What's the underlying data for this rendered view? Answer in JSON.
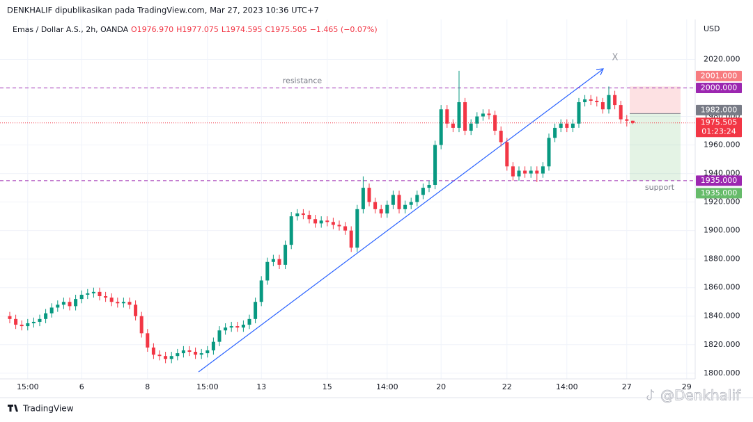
{
  "header": "DENKHALIF dipublikasikan pada TradingView.com, Mar 27, 2023 10:36 UTC+7",
  "footer": {
    "brand": "TradingView",
    "watermark": "@Denkhalif"
  },
  "chart_data": {
    "type": "candlestick",
    "legend": {
      "symbol": "Emas / Dollar A.S., 2h, OANDA",
      "open": "O1976.970",
      "high": "H1977.075",
      "low": "L1974.595",
      "close": "C1975.505",
      "change": "−1.465 (−0.07%)"
    },
    "currency": "USD",
    "trend_label": "X",
    "up_color": "#089981",
    "down_color": "#f23645",
    "categories": [
      null,
      null,
      null,
      "15:00",
      null,
      null,
      null,
      null,
      null,
      null,
      null,
      null,
      "6",
      null,
      null,
      null,
      null,
      null,
      null,
      null,
      null,
      null,
      null,
      "8",
      null,
      null,
      null,
      null,
      null,
      null,
      null,
      null,
      null,
      "15:00",
      null,
      null,
      null,
      null,
      null,
      null,
      null,
      null,
      "13",
      null,
      null,
      null,
      null,
      null,
      null,
      null,
      null,
      null,
      null,
      "15",
      null,
      null,
      null,
      null,
      null,
      null,
      null,
      null,
      null,
      "14:00",
      null,
      null,
      null,
      null,
      null,
      null,
      null,
      null,
      "20",
      null,
      null,
      null,
      null,
      null,
      null,
      null,
      null,
      null,
      null,
      "22",
      null,
      null,
      null,
      null,
      null,
      null,
      null,
      null,
      null,
      "14:00",
      null,
      null,
      null,
      null,
      null,
      null,
      null,
      null,
      null,
      "27",
      null,
      null,
      null,
      null,
      null,
      null,
      null,
      null,
      null,
      "29",
      null
    ],
    "open": [
      1840,
      1838,
      1834,
      1833,
      1835,
      1836,
      1838,
      1842,
      1846,
      1848,
      1850,
      1847,
      1852,
      1855,
      1856,
      1857,
      1854,
      1853,
      1850,
      1849,
      1850,
      1848,
      1840,
      1828,
      1818,
      1813,
      1812,
      1810,
      1812,
      1814,
      1816,
      1815,
      1813,
      1814,
      1816,
      1822,
      1830,
      1832,
      1833,
      1832,
      1834,
      1838,
      1850,
      1865,
      1878,
      1880,
      1876,
      1890,
      1910,
      1912,
      1911,
      1908,
      1905,
      1907,
      1906,
      1904,
      1903,
      1900,
      1888,
      1915,
      1930,
      1920,
      1915,
      1912,
      1918,
      1925,
      1915,
      1918,
      1920,
      1925,
      1930,
      1932,
      1960,
      1985,
      1975,
      1972,
      1990,
      1970,
      1975,
      1980,
      1982,
      1981,
      1970,
      1962,
      1945,
      1938,
      1942,
      1940,
      1942,
      1940,
      1945,
      1965,
      1972,
      1975,
      1972,
      1975,
      1990,
      1992,
      1991,
      1990,
      1985,
      1995,
      1988,
      1978,
      1976.97,
      null,
      null,
      null,
      null,
      null,
      null,
      null,
      null,
      null,
      null
    ],
    "high": [
      1843,
      1841,
      1837,
      1838,
      1839,
      1841,
      1845,
      1849,
      1851,
      1853,
      1853,
      1855,
      1858,
      1859,
      1860,
      1860,
      1857,
      1856,
      1853,
      1853,
      1853,
      1851,
      1843,
      1831,
      1821,
      1816,
      1815,
      1815,
      1817,
      1819,
      1819,
      1818,
      1817,
      1819,
      1825,
      1833,
      1835,
      1836,
      1836,
      1837,
      1841,
      1853,
      1868,
      1881,
      1883,
      1883,
      1893,
      1913,
      1915,
      1915,
      1914,
      1911,
      1910,
      1910,
      1909,
      1907,
      1906,
      1903,
      1918,
      1938,
      1933,
      1923,
      1918,
      1921,
      1928,
      1928,
      1921,
      1923,
      1928,
      1933,
      1935,
      1963,
      1988,
      1988,
      1978,
      2012,
      1993,
      1978,
      1983,
      1985,
      1985,
      1984,
      1973,
      1965,
      1948,
      1945,
      1945,
      1945,
      1945,
      1948,
      1968,
      1975,
      1978,
      1978,
      1978,
      1993,
      1995,
      1995,
      1994,
      1993,
      2001,
      1998,
      1991,
      1981,
      1977.075,
      null,
      null,
      null,
      null,
      null,
      null,
      null,
      null,
      null,
      null
    ],
    "low": [
      1835,
      1831,
      1830,
      1830,
      1832,
      1833,
      1835,
      1839,
      1843,
      1845,
      1844,
      1844,
      1849,
      1852,
      1853,
      1851,
      1850,
      1847,
      1846,
      1846,
      1845,
      1837,
      1825,
      1815,
      1810,
      1809,
      1807,
      1807,
      1809,
      1811,
      1812,
      1810,
      1810,
      1811,
      1813,
      1819,
      1827,
      1829,
      1829,
      1829,
      1831,
      1835,
      1847,
      1862,
      1875,
      1873,
      1873,
      1887,
      1907,
      1908,
      1905,
      1902,
      1902,
      1903,
      1901,
      1900,
      1897,
      1885,
      1885,
      1912,
      1917,
      1912,
      1909,
      1909,
      1915,
      1912,
      1912,
      1915,
      1917,
      1922,
      1927,
      1929,
      1957,
      1972,
      1969,
      1969,
      1967,
      1967,
      1972,
      1977,
      1978,
      1967,
      1959,
      1942,
      1935,
      1935,
      1937,
      1937,
      1934,
      1937,
      1942,
      1962,
      1969,
      1969,
      1969,
      1972,
      1987,
      1988,
      1987,
      1982,
      1982,
      1985,
      1975,
      1973,
      1974.595,
      null,
      null,
      null,
      null,
      null,
      null,
      null,
      null,
      null,
      null
    ],
    "close": [
      1838,
      1834,
      1833,
      1835,
      1836,
      1838,
      1842,
      1846,
      1848,
      1850,
      1847,
      1852,
      1855,
      1856,
      1857,
      1854,
      1853,
      1850,
      1849,
      1850,
      1848,
      1840,
      1828,
      1818,
      1813,
      1812,
      1810,
      1812,
      1814,
      1816,
      1815,
      1813,
      1814,
      1816,
      1822,
      1830,
      1832,
      1833,
      1832,
      1834,
      1838,
      1850,
      1865,
      1878,
      1880,
      1876,
      1890,
      1910,
      1912,
      1911,
      1908,
      1905,
      1907,
      1906,
      1904,
      1903,
      1900,
      1888,
      1915,
      1930,
      1920,
      1915,
      1912,
      1918,
      1925,
      1915,
      1918,
      1920,
      1925,
      1930,
      1932,
      1960,
      1985,
      1975,
      1972,
      1990,
      1970,
      1975,
      1980,
      1982,
      1981,
      1970,
      1962,
      1945,
      1938,
      1942,
      1940,
      1942,
      1940,
      1945,
      1965,
      1972,
      1975,
      1972,
      1975,
      1990,
      1992,
      1991,
      1990,
      1985,
      1995,
      1988,
      1978,
      1976.97,
      1975.505,
      null,
      null,
      null,
      null,
      null,
      null,
      null,
      null,
      null,
      null
    ],
    "ylim": [
      1796,
      2048
    ],
    "yticks": [
      {
        "value": 1800,
        "label": "1800.000"
      },
      {
        "value": 1820,
        "label": "1820.000"
      },
      {
        "value": 1840,
        "label": "1840.000"
      },
      {
        "value": 1860,
        "label": "1860.000"
      },
      {
        "value": 1880,
        "label": "1880.000"
      },
      {
        "value": 1900,
        "label": "1900.000"
      },
      {
        "value": 1920,
        "label": "1920.000"
      },
      {
        "value": 1940,
        "label": "1940.000"
      },
      {
        "value": 1960,
        "label": "1960.000"
      },
      {
        "value": 1980,
        "label": "1980.000"
      },
      {
        "value": 2000,
        "label": "2000.000"
      },
      {
        "value": 2020,
        "label": "2020.000"
      }
    ],
    "grid": true,
    "levels": [
      {
        "value": 2000,
        "text": "resistance",
        "color": "#9c27b0"
      },
      {
        "value": 1935,
        "text": "support",
        "color": "#9c27b0"
      }
    ],
    "price_tags": [
      {
        "value": 2001,
        "label": "2001.000",
        "color": "#f77c80"
      },
      {
        "value": 2000,
        "label": "2000.000",
        "color": "#9c27b0"
      },
      {
        "value": 1982,
        "label": "1982.000",
        "color": "#787b86"
      },
      {
        "value": 1975.505,
        "label": "1975.505",
        "timer": "01:23:24",
        "color": "#f23645"
      },
      {
        "value": 1935,
        "label": "1935.000",
        "color": "#9c27b0"
      },
      {
        "value": 1935,
        "label": "1935.000",
        "color": "#66bb6a"
      }
    ]
  }
}
